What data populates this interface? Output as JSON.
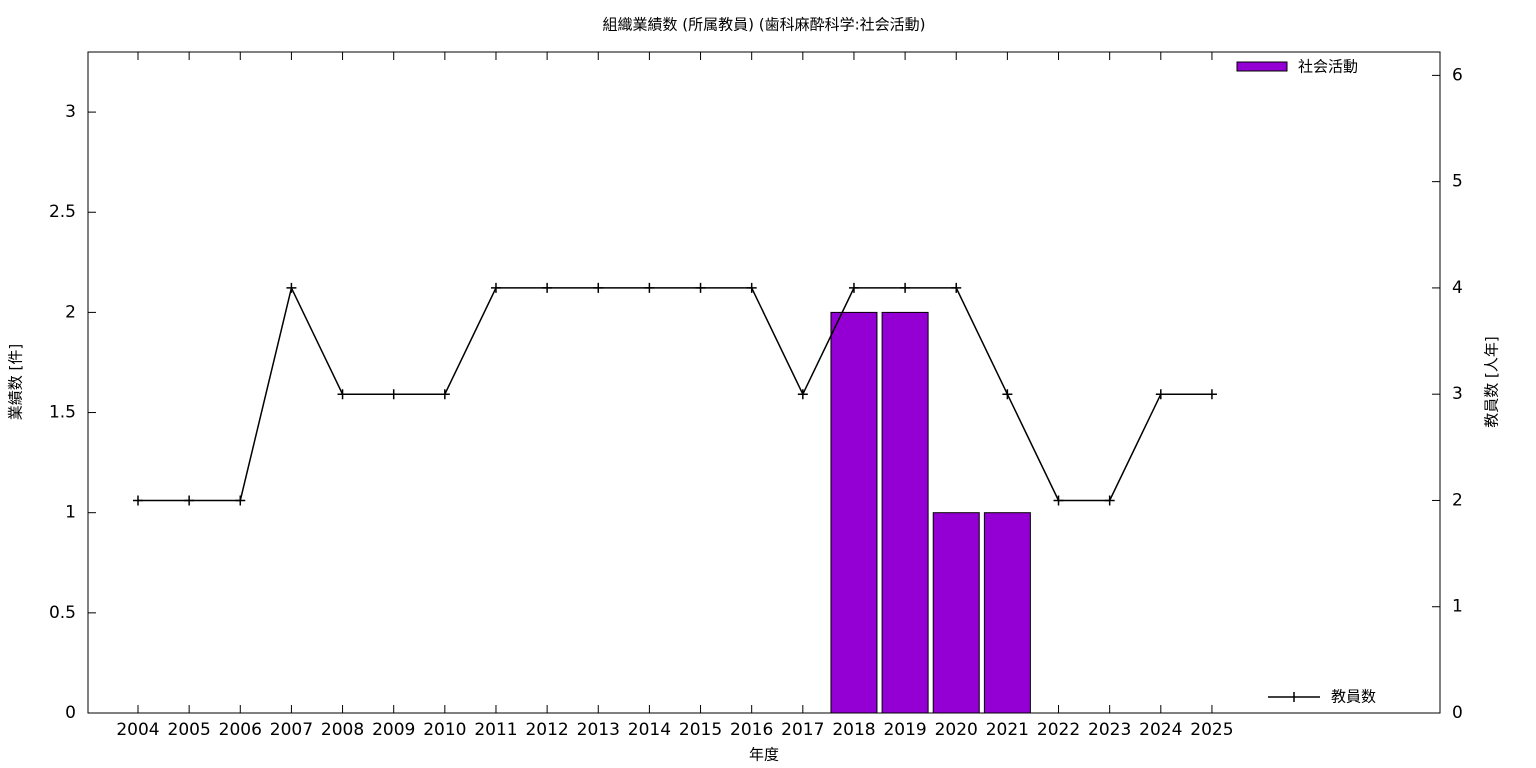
{
  "chart_data": {
    "type": "bar",
    "title": "組織業績数 (所属教員) (歯科麻酔科学:社会活動)",
    "x_label": "年度",
    "y_label": "業績数 [件]",
    "y2_label": "教員数 [人年]",
    "categories": [
      "2004",
      "2005",
      "2006",
      "2007",
      "2008",
      "2009",
      "2010",
      "2011",
      "2012",
      "2013",
      "2014",
      "2015",
      "2016",
      "2017",
      "2018",
      "2019",
      "2020",
      "2021",
      "2022",
      "2023",
      "2024",
      "2025"
    ],
    "series": [
      {
        "name": "社会活動",
        "type": "bar",
        "color": "#9400d3",
        "values": [
          0,
          0,
          0,
          0,
          0,
          0,
          0,
          0,
          0,
          0,
          0,
          0,
          0,
          0,
          2,
          2,
          1,
          1,
          0,
          0,
          0,
          0
        ]
      },
      {
        "name": "教員数",
        "type": "line",
        "axis": "y2",
        "color": "#000000",
        "values": [
          2,
          2,
          2,
          4,
          3,
          3,
          3,
          4,
          4,
          4,
          4,
          4,
          4,
          3,
          4,
          4,
          4,
          3,
          2,
          2,
          3,
          3
        ]
      }
    ],
    "ylim": [
      0,
      3.3
    ],
    "yticks": [
      0,
      0.5,
      1,
      1.5,
      2,
      2.5,
      3
    ],
    "y2lim": [
      0,
      6.22
    ],
    "y2ticks": [
      0,
      1,
      2,
      3,
      4,
      5,
      6
    ]
  }
}
